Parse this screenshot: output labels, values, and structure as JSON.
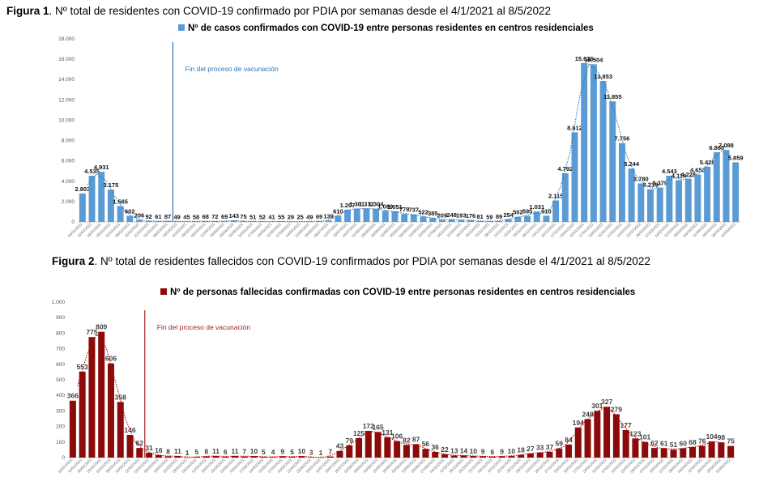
{
  "figure1": {
    "label": "Figura 1",
    "title": ". Nº total de residentes con COVID-19 confirmado por PDIA por semanas desde el 4/1/2021 al 8/5/2022"
  },
  "figure2": {
    "label": "Figura 2",
    "title": ". Nº total de residentes fallecidos con COVID-19 confirmados por PDIA por semanas desde el 4/1/2021 al 8/5/2022"
  },
  "colors": {
    "bar1": "#5b9bd5",
    "bar2": "#8b0a0a",
    "line1": "#2e75b6",
    "line2": "#c00000",
    "annot1": "#2e75b6",
    "annot2": "#a52020"
  },
  "chart_data": [
    {
      "type": "bar",
      "legend": "Nº de casos confirmados con COVID-19 entre personas residentes en centros residenciales",
      "annotation": "Fin del proceso de vacunación",
      "annotation_after_index": 9,
      "ylim": [
        0,
        18000
      ],
      "yticks": [
        0,
        2000,
        4000,
        6000,
        8000,
        10000,
        12000,
        14000,
        16000,
        18000
      ],
      "ytick_labels": [
        "0",
        "2.000",
        "4.000",
        "6.000",
        "8.000",
        "10.000",
        "12.000",
        "14.000",
        "16.000",
        "18.000"
      ],
      "trendline": "dotted moving average",
      "values": [
        2803,
        4535,
        4931,
        3175,
        1565,
        602,
        206,
        92,
        61,
        87,
        49,
        45,
        58,
        68,
        72,
        69,
        143,
        75,
        51,
        52,
        41,
        55,
        29,
        25,
        49,
        69,
        139,
        610,
        1207,
        1301,
        1312,
        1304,
        1089,
        1051,
        778,
        737,
        522,
        385,
        209,
        248,
        193,
        176,
        81,
        59,
        89,
        254,
        502,
        595,
        1031,
        610,
        2115,
        4792,
        8812,
        15626,
        15504,
        13853,
        11855,
        7756,
        5244,
        3780,
        3219,
        3379,
        4543,
        4114,
        4228,
        4653,
        5428,
        6860,
        7088,
        5859
      ],
      "value_labels": [
        "2.803",
        "4.535",
        "4.931",
        "3.175",
        "1.565",
        "602",
        "206",
        "92",
        "61",
        "87",
        "49",
        "45",
        "58",
        "68",
        "72",
        "69",
        "143",
        "75",
        "51",
        "52",
        "41",
        "55",
        "29",
        "25",
        "49",
        "69",
        "139",
        "610",
        "1.207",
        "1.301",
        "1.312",
        "1.304",
        "1.089",
        "1.051",
        "778",
        "737",
        "522",
        "385",
        "209",
        "248",
        "193",
        "176",
        "81",
        "59",
        "89",
        "254",
        "502",
        "595",
        "1.031",
        "610",
        "2.115",
        "4.792",
        "8.812",
        "15.626",
        "15.504",
        "13.853",
        "11.855",
        "7.756",
        "5.244",
        "3.780",
        "3.219",
        "3.379",
        "4.543",
        "4.114",
        "4.228",
        "4.653",
        "5.428",
        "6.860",
        "7.088",
        "5.859"
      ],
      "categories": [
        "04/01/2021",
        "11/01/2021",
        "18/01/2021",
        "25/01/2021",
        "01/02/2021",
        "08/02/2021",
        "15/02/2021",
        "22/02/2021",
        "01/03/2021",
        "08/03/2021",
        "15/03/2021",
        "22/03/2021",
        "29/03/2021",
        "05/04/2021",
        "12/04/2021",
        "19/04/2021",
        "26/04/2021",
        "03/05/2021",
        "10/05/2021",
        "17/05/2021",
        "24/05/2021",
        "31/05/2021",
        "07/06/2021",
        "14/06/2021",
        "21/06/2021",
        "28/06/2021",
        "05/07/2021",
        "12/07/2021",
        "19/07/2021",
        "26/07/2021",
        "02/08/2021",
        "09/08/2021",
        "16/08/2021",
        "23/08/2021",
        "30/08/2021",
        "06/09/2021",
        "13/09/2021",
        "20/09/2021",
        "27/09/2021",
        "04/10/2021",
        "11/10/2021",
        "18/10/2021",
        "25/10/2021",
        "01/11/2021",
        "08/11/2021",
        "15/11/2021",
        "22/11/2021",
        "29/11/2021",
        "06/12/2021",
        "13/12/2021",
        "20/12/2021",
        "27/12/2021",
        "03/01/2022",
        "10/01/2022",
        "17/01/2022",
        "24/01/2022",
        "31/01/2022",
        "07/02/2022",
        "14/02/2022",
        "21/02/2022",
        "28/02/2022",
        "07/03/2022",
        "14/03/2022",
        "21/03/2022",
        "28/03/2022",
        "04/04/2022",
        "11/04/2022",
        "18/04/2022",
        "25/04/2022",
        "02/05/2022"
      ]
    },
    {
      "type": "bar",
      "legend": "Nº de personas fallecidas confirmadas con COVID-19 entre personas residentes en centros residenciales",
      "annotation": "Fin del proceso de vacunación",
      "annotation_after_index": 7,
      "ylim": [
        0,
        1000
      ],
      "yticks": [
        0,
        100,
        200,
        300,
        400,
        500,
        600,
        700,
        800,
        900,
        1000
      ],
      "ytick_labels": [
        "0",
        "100",
        "200",
        "300",
        "400",
        "500",
        "600",
        "700",
        "800",
        "900",
        "1.000"
      ],
      "trendline": "dotted moving average",
      "values": [
        366,
        553,
        775,
        809,
        606,
        358,
        146,
        62,
        31,
        16,
        8,
        11,
        1,
        5,
        8,
        11,
        6,
        11,
        7,
        10,
        5,
        4,
        9,
        5,
        10,
        3,
        1,
        7,
        43,
        79,
        125,
        172,
        165,
        131,
        106,
        82,
        87,
        56,
        36,
        22,
        13,
        14,
        10,
        9,
        6,
        9,
        10,
        18,
        27,
        33,
        37,
        59,
        84,
        194,
        248,
        301,
        327,
        279,
        177,
        123,
        101,
        62,
        61,
        51,
        60,
        68,
        76,
        104,
        98,
        75
      ],
      "value_labels": [
        "366",
        "553",
        "775",
        "809",
        "606",
        "358",
        "146",
        "62",
        "31",
        "16",
        "8",
        "11",
        "1",
        "5",
        "8",
        "11",
        "6",
        "11",
        "7",
        "10",
        "5",
        "4",
        "9",
        "5",
        "10",
        "3",
        "1",
        "7",
        "43",
        "79",
        "125",
        "172",
        "165",
        "131",
        "106",
        "82",
        "87",
        "56",
        "36",
        "22",
        "13",
        "14",
        "10",
        "9",
        "6",
        "9",
        "10",
        "18",
        "27",
        "33",
        "37",
        "59",
        "84",
        "194",
        "248",
        "301",
        "327",
        "279",
        "177",
        "123",
        "101",
        "62",
        "61",
        "51",
        "60",
        "68",
        "76",
        "104",
        "98",
        "75"
      ],
      "categories": [
        "04/01/2021",
        "11/01/2021",
        "18/01/2021",
        "25/01/2021",
        "01/02/2021",
        "08/02/2021",
        "15/02/2021",
        "22/02/2021",
        "01/03/2021",
        "08/03/2021",
        "15/03/2021",
        "22/03/2021",
        "29/03/2021",
        "05/04/2021",
        "12/04/2021",
        "19/04/2021",
        "26/04/2021",
        "03/05/2021",
        "10/05/2021",
        "17/05/2021",
        "24/05/2021",
        "31/05/2021",
        "07/06/2021",
        "14/06/2021",
        "21/06/2021",
        "28/06/2021",
        "05/07/2021",
        "12/07/2021",
        "19/07/2021",
        "26/07/2021",
        "02/08/2021",
        "09/08/2021",
        "16/08/2021",
        "23/08/2021",
        "30/08/2021",
        "06/09/2021",
        "13/09/2021",
        "20/09/2021",
        "27/09/2021",
        "04/10/2021",
        "11/10/2021",
        "18/10/2021",
        "25/10/2021",
        "01/11/2021",
        "08/11/2021",
        "15/11/2021",
        "22/11/2021",
        "29/11/2021",
        "06/12/2021",
        "13/12/2021",
        "20/12/2021",
        "27/12/2021",
        "03/01/2022",
        "10/01/2022",
        "17/01/2022",
        "24/01/2022",
        "31/01/2022",
        "07/02/2022",
        "14/02/2022",
        "21/02/2022",
        "28/02/2022",
        "07/03/2022",
        "14/03/2022",
        "21/03/2022",
        "28/03/2022",
        "04/04/2022",
        "11/04/2022",
        "18/04/2022",
        "25/04/2022",
        "02/05/2022"
      ]
    }
  ]
}
